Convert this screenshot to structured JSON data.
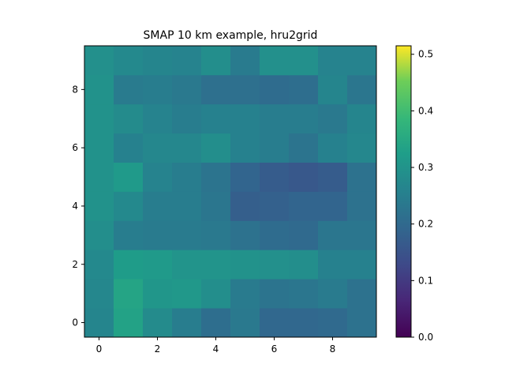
{
  "chart_data": {
    "type": "heatmap",
    "title": "SMAP 10 km example, hru2grid",
    "xlabel": "",
    "ylabel": "",
    "colormap": "viridis",
    "clim": [
      0.0,
      0.515
    ],
    "xlim": [
      -0.5,
      9.5
    ],
    "ylim": [
      -0.5,
      9.5
    ],
    "x_ticks": [
      "0",
      "2",
      "4",
      "6",
      "8"
    ],
    "y_ticks": [
      "0",
      "2",
      "4",
      "6",
      "8"
    ],
    "colorbar_ticks": [
      "0.0",
      "0.1",
      "0.2",
      "0.3",
      "0.4",
      "0.5"
    ],
    "origin": "lower",
    "rows_bottom_to_top": [
      [
        0.265,
        0.335,
        0.28,
        0.245,
        0.21,
        0.235,
        0.195,
        0.195,
        0.2,
        0.22
      ],
      [
        0.27,
        0.34,
        0.305,
        0.31,
        0.285,
        0.24,
        0.225,
        0.23,
        0.24,
        0.22
      ],
      [
        0.275,
        0.32,
        0.315,
        0.3,
        0.3,
        0.295,
        0.29,
        0.285,
        0.255,
        0.255
      ],
      [
        0.285,
        0.245,
        0.24,
        0.24,
        0.235,
        0.22,
        0.205,
        0.2,
        0.23,
        0.23
      ],
      [
        0.295,
        0.275,
        0.245,
        0.245,
        0.23,
        0.175,
        0.18,
        0.19,
        0.19,
        0.22
      ],
      [
        0.295,
        0.315,
        0.26,
        0.245,
        0.225,
        0.19,
        0.17,
        0.16,
        0.17,
        0.22
      ],
      [
        0.295,
        0.255,
        0.27,
        0.27,
        0.285,
        0.255,
        0.245,
        0.225,
        0.255,
        0.27
      ],
      [
        0.295,
        0.28,
        0.26,
        0.245,
        0.255,
        0.255,
        0.245,
        0.245,
        0.235,
        0.265
      ],
      [
        0.295,
        0.24,
        0.245,
        0.235,
        0.215,
        0.215,
        0.205,
        0.21,
        0.265,
        0.23
      ],
      [
        0.29,
        0.275,
        0.265,
        0.26,
        0.285,
        0.24,
        0.29,
        0.29,
        0.26,
        0.26
      ]
    ]
  }
}
